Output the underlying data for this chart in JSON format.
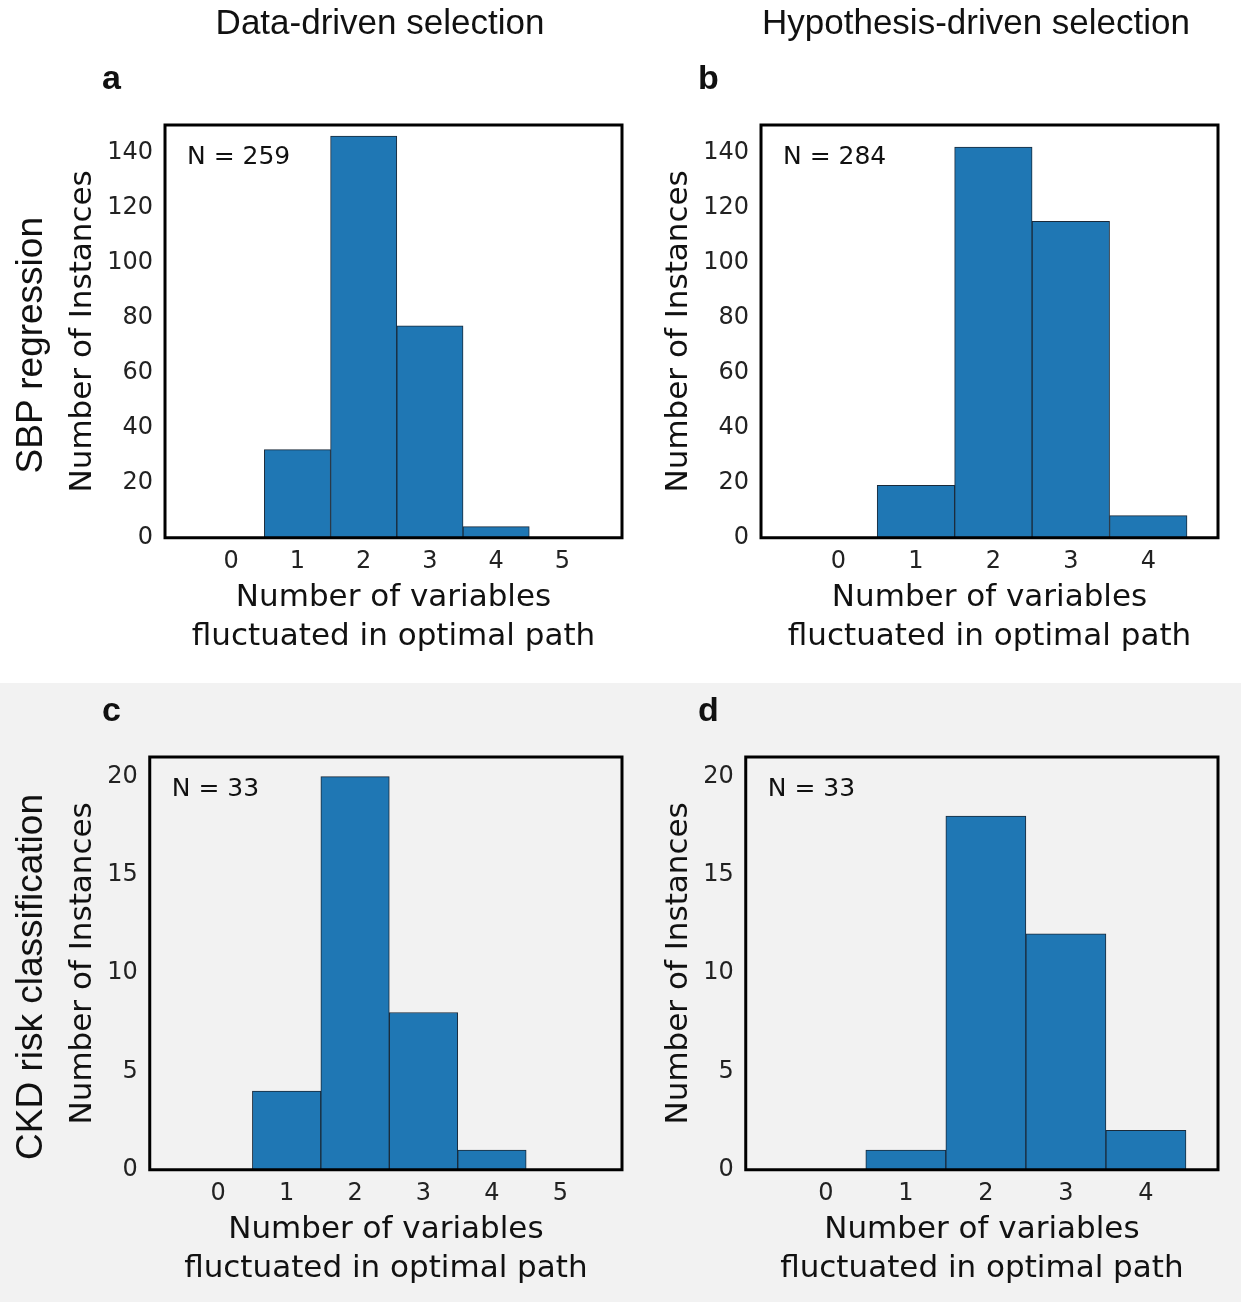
{
  "chart_data": [
    {
      "type": "histogram",
      "title": "a",
      "subtitle": "Data-driven selection",
      "xlabel": "Number of variables\nfluctuated in optimal path",
      "ylabel": "Number of Instances",
      "bins": [
        0.5,
        1.5,
        2.5,
        3.5,
        4.5
      ],
      "values": [
        32,
        146,
        77,
        4
      ],
      "color": "#1f77b4",
      "xlim": [
        -1,
        5.9
      ],
      "xticks": [
        0,
        1,
        2,
        3,
        4,
        5
      ],
      "ylim": [
        0,
        150
      ],
      "yticks": [
        0,
        20,
        40,
        60,
        80,
        100,
        120,
        140
      ],
      "annotations": [
        "N = 259",
        "SBP regression"
      ]
    },
    {
      "type": "histogram",
      "title": "b",
      "subtitle": "Hypothesis-driven selection",
      "xlabel": "Number of variables\nfluctuated in optimal path",
      "ylabel": "Number of Instances",
      "bins": [
        0.5,
        1.5,
        2.5,
        3.5,
        4.5
      ],
      "values": [
        19,
        142,
        115,
        8
      ],
      "color": "#1f77b4",
      "xlim": [
        -1,
        4.9
      ],
      "xticks": [
        0,
        1,
        2,
        3,
        4
      ],
      "ylim": [
        0,
        150
      ],
      "yticks": [
        0,
        20,
        40,
        60,
        80,
        100,
        120,
        140
      ],
      "annotations": [
        "N = 284"
      ]
    },
    {
      "type": "histogram",
      "title": "c",
      "xlabel": "Number of variables\nfluctuated in optimal path",
      "ylabel": "Number of Instances",
      "bins": [
        0.5,
        1.5,
        2.5,
        3.5,
        4.5
      ],
      "values": [
        4,
        20,
        8,
        1
      ],
      "color": "#1f77b4",
      "xlim": [
        -1,
        5.9
      ],
      "xticks": [
        0,
        1,
        2,
        3,
        4,
        5
      ],
      "ylim": [
        0,
        21
      ],
      "yticks": [
        0,
        5,
        10,
        15,
        20
      ],
      "annotations": [
        "N = 33",
        "CKD risk classification"
      ]
    },
    {
      "type": "histogram",
      "title": "d",
      "xlabel": "Number of variables\nfluctuated in optimal path",
      "ylabel": "Number of Instances",
      "bins": [
        0.5,
        1.5,
        2.5,
        3.5,
        4.5
      ],
      "values": [
        1,
        18,
        12,
        2
      ],
      "color": "#1f77b4",
      "xlim": [
        -1,
        4.9
      ],
      "xticks": [
        0,
        1,
        2,
        3,
        4
      ],
      "ylim": [
        0,
        21
      ],
      "yticks": [
        0,
        5,
        10,
        15,
        20
      ],
      "annotations": [
        "N = 33"
      ]
    }
  ]
}
